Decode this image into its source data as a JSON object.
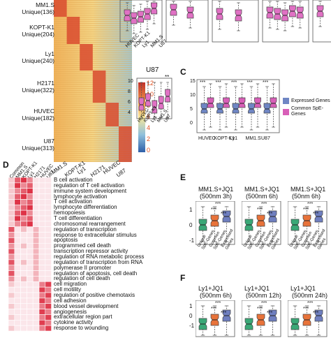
{
  "panelA": {
    "rows": [
      {
        "name": "MM1.S",
        "count": "Unique(136)"
      },
      {
        "name": "KOPT-K1",
        "count": "Unique(204)"
      },
      {
        "name": "Ly1",
        "count": "Unique(240)"
      },
      {
        "name": "H2171",
        "count": "Unique(322)"
      },
      {
        "name": "HUVEC",
        "count": "Unique(182)"
      },
      {
        "name": "U87",
        "count": "Unique(313)"
      }
    ],
    "columns": [
      "MM1.S",
      "KOPT-K1",
      "Ly1",
      "H2171",
      "HUVEC",
      "U87"
    ],
    "colorbar_ticks": [
      "12",
      "10",
      "8",
      "6",
      "4",
      "2",
      "0"
    ]
  },
  "panelB": {
    "top_xlabels": [
      "HUVEC",
      "KOPT-K1",
      "Ly1",
      "MM1.S",
      "U87"
    ],
    "u87_title": "U87",
    "u87_sig": "**",
    "u87_yticks": [
      "10",
      "8",
      "6",
      "4"
    ]
  },
  "panelC": {
    "label": "C",
    "categories": [
      "HUVEC",
      "KOPT-K1",
      "Ly1",
      "MM1.S",
      "U87"
    ],
    "sig": [
      "***",
      "***",
      "***",
      "***",
      "***"
    ],
    "yticks": [
      "15",
      "10",
      "5",
      "0"
    ],
    "legend": [
      {
        "name": "Expressed Genes",
        "color": "#6f86c4"
      },
      {
        "name": "Common SpE-Genes",
        "color": "#d85fb8"
      }
    ]
  },
  "panelD": {
    "label": "D",
    "columns": [
      "Common",
      "MM1.S",
      "KOPT-K1",
      "Ly1",
      "H2171",
      "HUVEC",
      "U87"
    ],
    "terms": [
      "B cell activation",
      "regulation of T cell activation",
      "immune system development",
      "lymphocyte activation",
      "T cell activation",
      "lymphocyte differentiation",
      "hemopoiesis",
      "T cell differentiation",
      "chromosomal rearrangement",
      "regulation of transcription",
      "response to extracellular stimulus",
      "apoptosis",
      "programmed cell death",
      "transcription repressor activity",
      "regulation of RNA metabolic process",
      "regulation of transcription from RNA",
      "polymerase II promoter",
      "regulation of apoptosis, cell death",
      "regulation of cell death",
      "cell migration",
      "cell motility",
      "regulation of positive chemotaxis",
      "cell adhesion",
      "blood vessel development",
      "angiogenesis",
      "extracellular region part",
      "cytokine activity",
      "response to wounding"
    ]
  },
  "panelE": {
    "label": "E",
    "plots": [
      {
        "title1": "MM1.S+JQ1",
        "title2": "(500nm 3h)",
        "sig": [
          "***",
          "***",
          "***"
        ]
      },
      {
        "title1": "MM1.S+JQ1",
        "title2": "(500nm 6h)",
        "sig": [
          "***",
          "***",
          "***"
        ]
      },
      {
        "title1": "MM1.S+JQ1",
        "title2": "(50nm 6h)",
        "sig": [
          "***",
          "***",
          "***"
        ]
      }
    ],
    "yticks": [
      "1",
      "0",
      "-1"
    ],
    "xlabels": [
      "Unique SpE-Genes",
      "Common SpE-Genes",
      "Expressed Genes"
    ],
    "colors": [
      "#3aa877",
      "#e8733a",
      "#6f7fc0"
    ]
  },
  "panelF": {
    "label": "F",
    "plots": [
      {
        "title1": "Ly1+JQ1",
        "title2": "(500nm 6h)",
        "sig": [
          "***",
          "***",
          "***"
        ]
      },
      {
        "title1": "Ly1+JQ1",
        "title2": "(500nm 12h)",
        "sig": [
          "***",
          "***",
          "***"
        ]
      },
      {
        "title1": "Ly1+JQ1",
        "title2": "(500nm 24h)",
        "sig": [
          "***",
          "***",
          "***"
        ]
      }
    ],
    "yticks": [
      "1",
      "0",
      "-1"
    ]
  }
}
